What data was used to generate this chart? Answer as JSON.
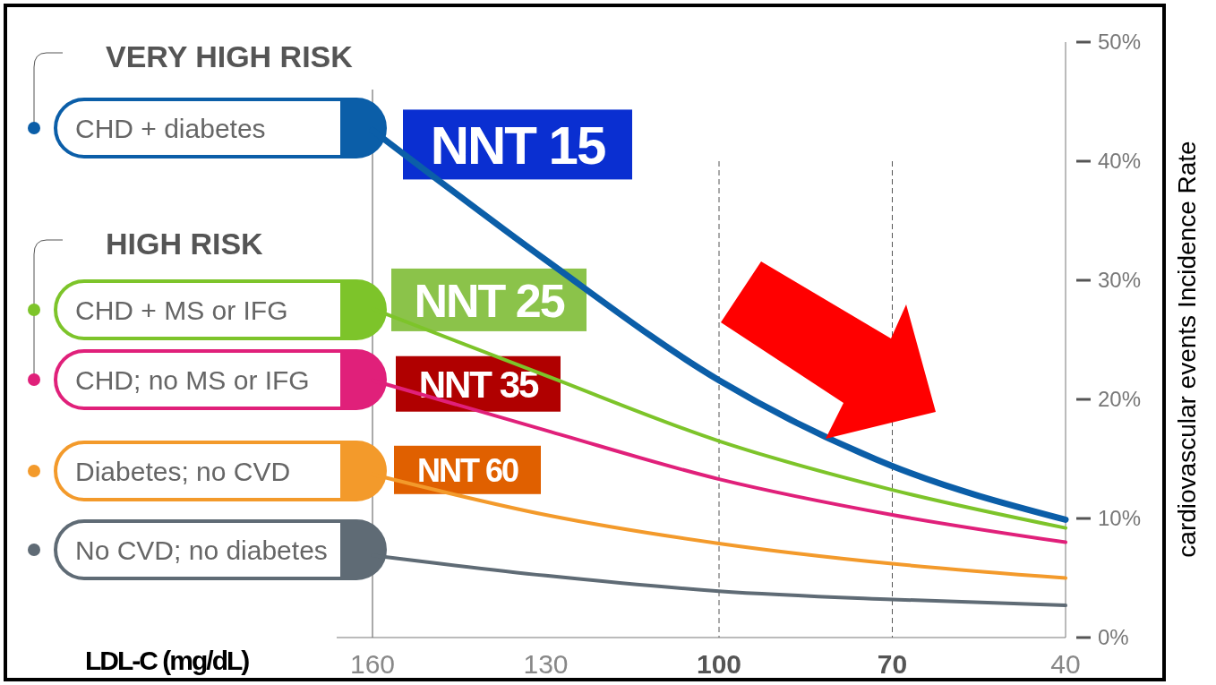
{
  "chart_data": {
    "type": "line",
    "xlabel": "LDL-C (mg/dL)",
    "ylabel": "cardiovascular events Incidence Rate",
    "x": [
      160,
      130,
      100,
      70,
      40
    ],
    "series": [
      {
        "name": "CHD + diabetes",
        "color": "#0b5ea8",
        "values": [
          42.6,
          31.7,
          21.6,
          14.4,
          9.9
        ]
      },
      {
        "name": "CHD + MS or IFG",
        "color": "#7dc42a",
        "values": [
          27.6,
          22,
          16.5,
          12.4,
          9.2
        ]
      },
      {
        "name": "CHD; no MS or IFG",
        "color": "#e0207a",
        "values": [
          21.6,
          17.4,
          13.3,
          10.3,
          8.0
        ]
      },
      {
        "name": "Diabetes; no CVD",
        "color": "#f39a2b",
        "values": [
          13.7,
          10.3,
          7.9,
          6.2,
          5.0
        ]
      },
      {
        "name": "No CVD; no diabetes",
        "color": "#5f6b75",
        "values": [
          6.9,
          5.2,
          3.9,
          3.2,
          2.7
        ]
      }
    ],
    "xlim": [
      160,
      40
    ],
    "xticks": [
      160,
      130,
      100,
      70,
      40
    ],
    "ylim": [
      0,
      50
    ],
    "yticks": [
      {
        "value": 0,
        "label": "0%"
      },
      {
        "value": 10,
        "label": "10%"
      },
      {
        "value": 20,
        "label": "20%"
      },
      {
        "value": 30,
        "label": "30%"
      },
      {
        "value": 40,
        "label": "40%"
      },
      {
        "value": 50,
        "label": "50%"
      }
    ],
    "ref_lines": [
      {
        "axis": "x",
        "value": 160,
        "line_style": "solid"
      },
      {
        "axis": "x",
        "value": 100,
        "line_style": "dashed"
      },
      {
        "axis": "x",
        "value": 70,
        "line_style": "dashed"
      }
    ],
    "annotations": [
      "VERY HIGH RISK",
      "HIGH RISK",
      "NNT 15",
      "NNT 25",
      "NNT 35",
      "NNT 60"
    ],
    "legend": "left",
    "marker": "none",
    "line_style": "solid",
    "grid": false
  }
}
